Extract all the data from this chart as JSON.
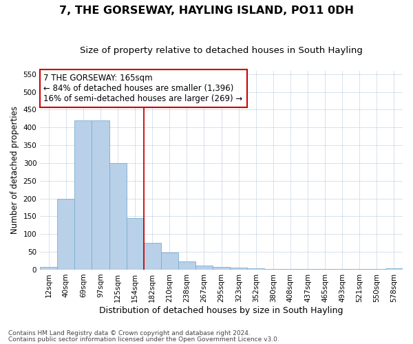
{
  "title": "7, THE GORSEWAY, HAYLING ISLAND, PO11 0DH",
  "subtitle": "Size of property relative to detached houses in South Hayling",
  "xlabel": "Distribution of detached houses by size in South Hayling",
  "ylabel": "Number of detached properties",
  "footnote1": "Contains HM Land Registry data © Crown copyright and database right 2024.",
  "footnote2": "Contains public sector information licensed under the Open Government Licence v3.0.",
  "bar_labels": [
    "12sqm",
    "40sqm",
    "69sqm",
    "97sqm",
    "125sqm",
    "154sqm",
    "182sqm",
    "210sqm",
    "238sqm",
    "267sqm",
    "295sqm",
    "323sqm",
    "352sqm",
    "380sqm",
    "408sqm",
    "437sqm",
    "465sqm",
    "493sqm",
    "521sqm",
    "550sqm",
    "578sqm"
  ],
  "bar_values": [
    8,
    200,
    420,
    420,
    300,
    145,
    75,
    48,
    23,
    12,
    8,
    5,
    3,
    1,
    1,
    1,
    1,
    1,
    1,
    1,
    3
  ],
  "bar_color": "#b8d0e8",
  "bar_edge_color": "#7aaed0",
  "vline_x": 5.5,
  "vline_color": "#cc0000",
  "ylim": [
    0,
    560
  ],
  "yticks": [
    0,
    50,
    100,
    150,
    200,
    250,
    300,
    350,
    400,
    450,
    500,
    550
  ],
  "annotation_title": "7 THE GORSEWAY: 165sqm",
  "annotation_line1": "← 84% of detached houses are smaller (1,396)",
  "annotation_line2": "16% of semi-detached houses are larger (269) →",
  "annotation_box_color": "#cc0000",
  "title_fontsize": 11.5,
  "subtitle_fontsize": 9.5,
  "xlabel_fontsize": 9,
  "ylabel_fontsize": 8.5,
  "tick_fontsize": 7.5,
  "annotation_fontsize": 8.5,
  "footnote_fontsize": 6.5,
  "font_family": "DejaVu Sans"
}
